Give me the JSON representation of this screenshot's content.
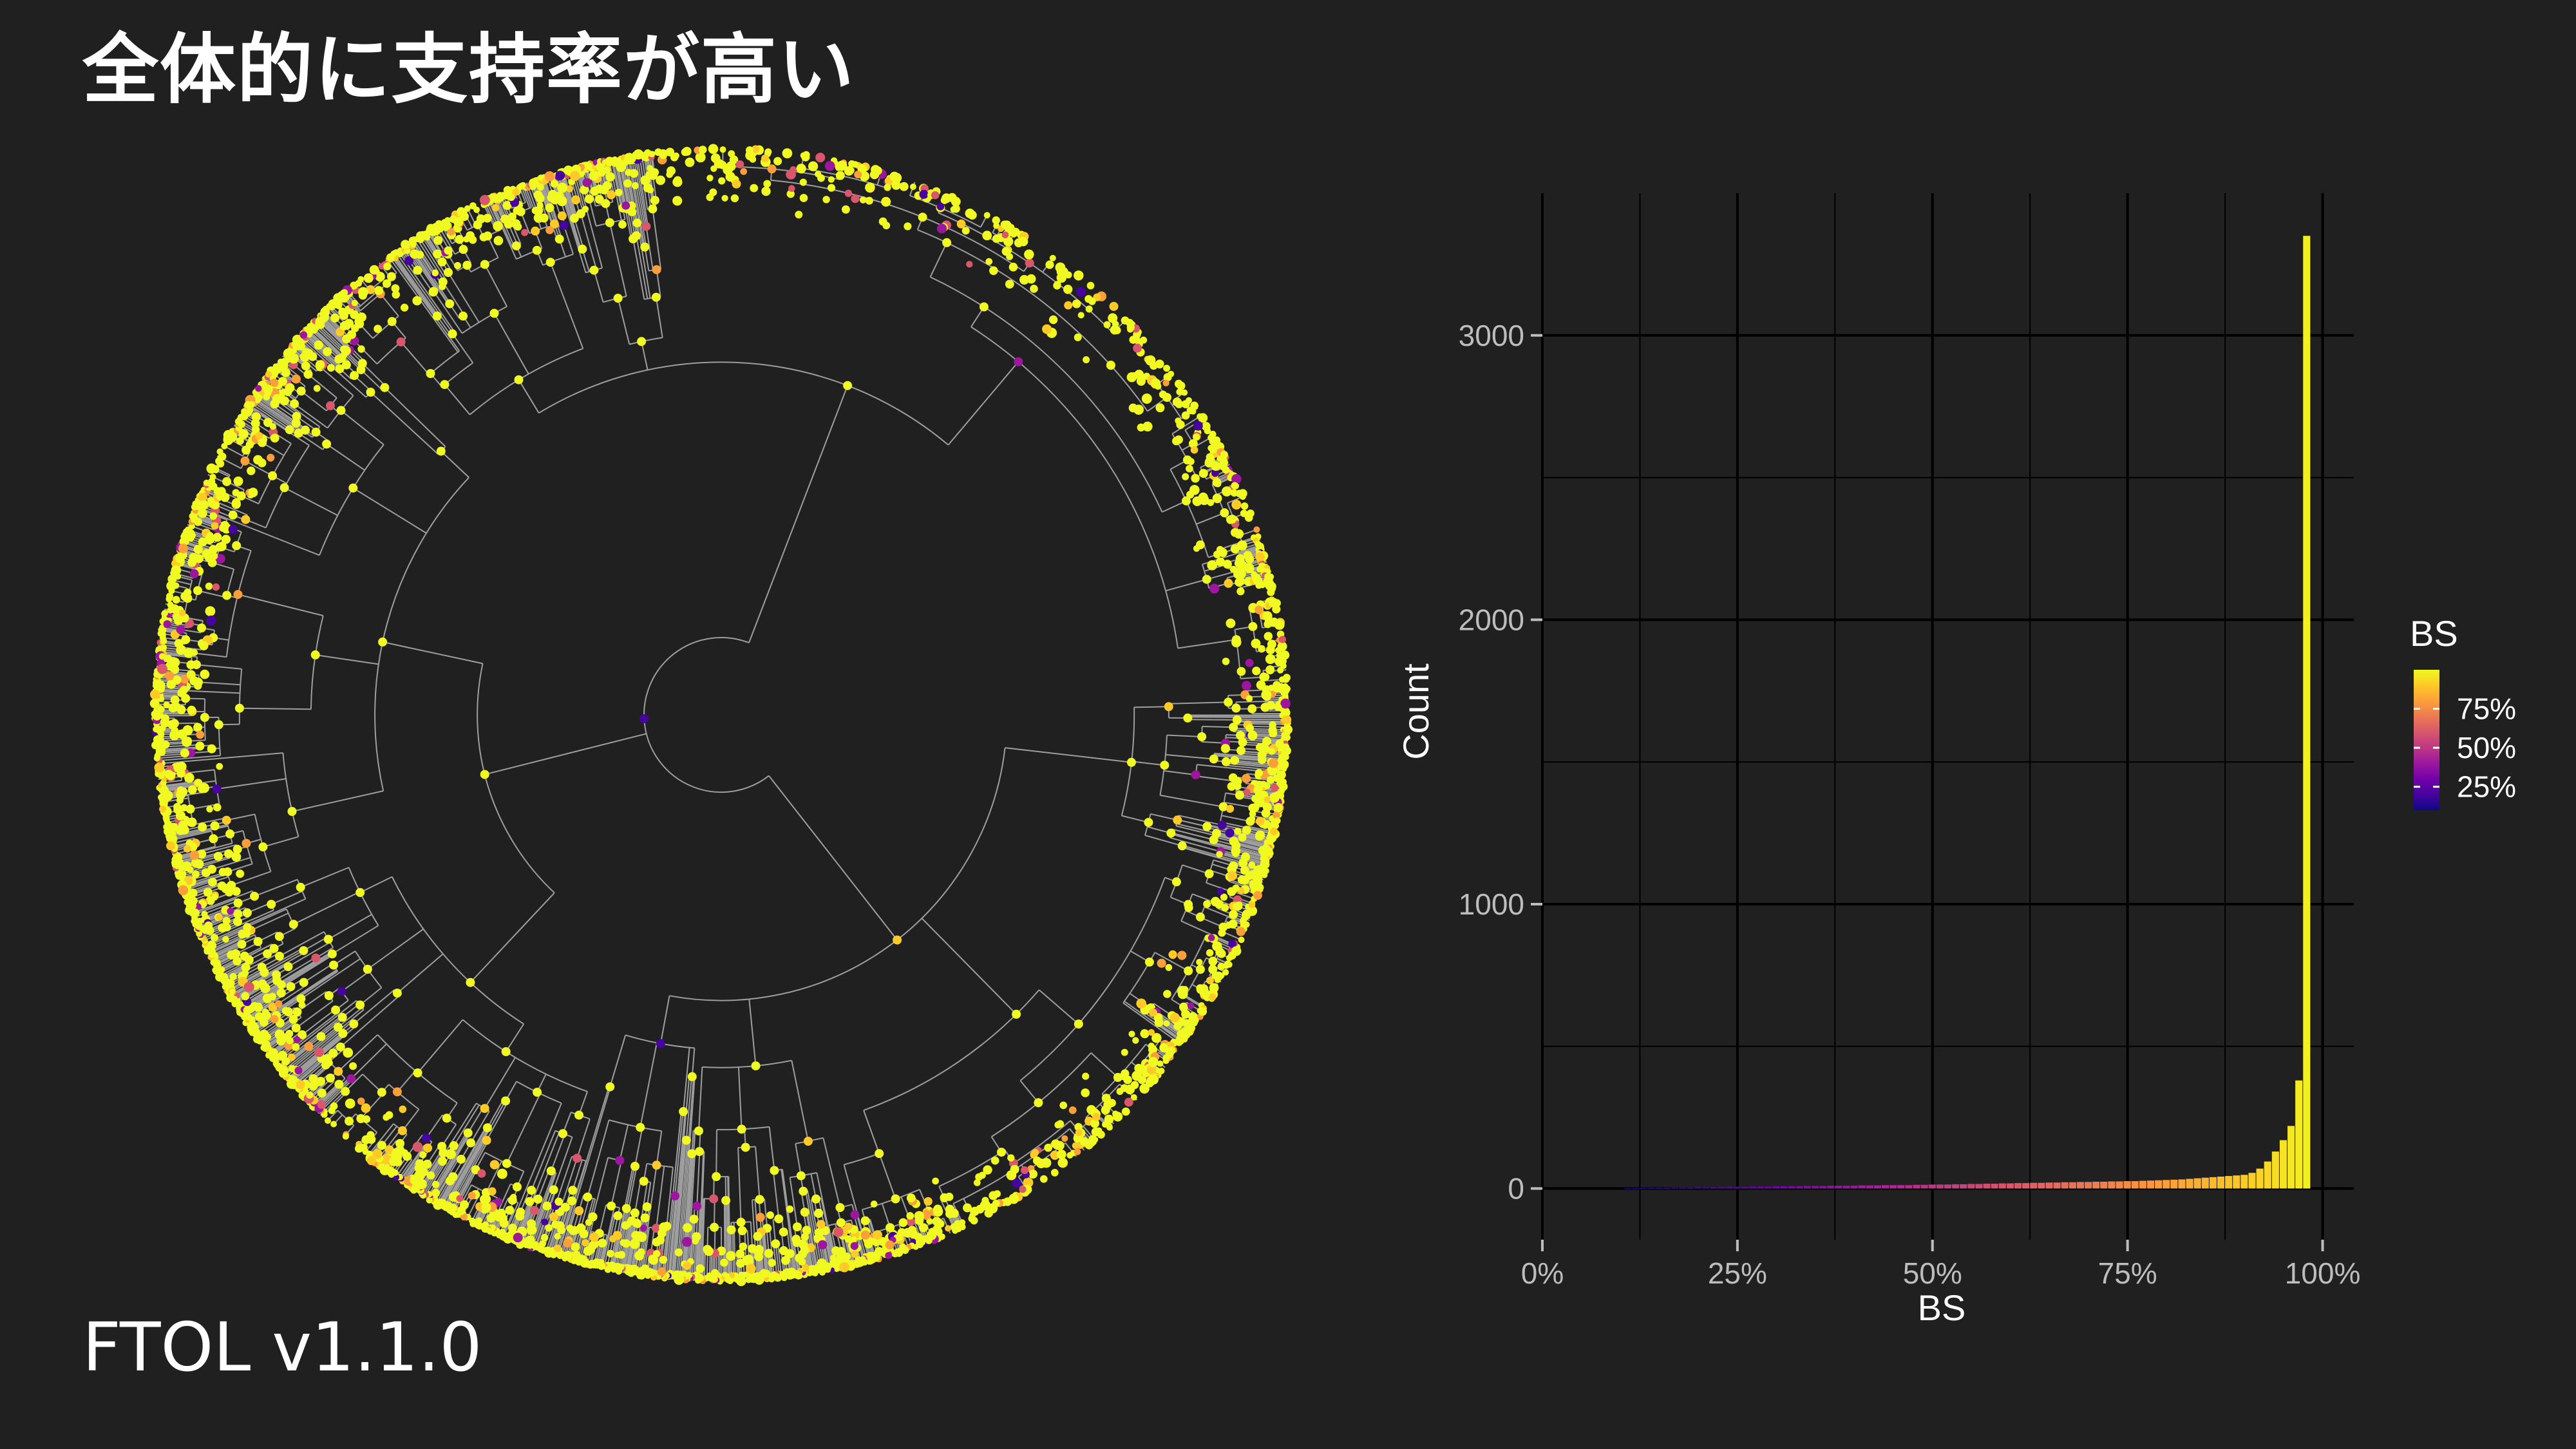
{
  "page": {
    "title": "全体的に支持率が高い",
    "footer": "FTOL v1.1.0",
    "background": "#202020"
  },
  "tree": {
    "type": "circular-phylogeny",
    "branch_color": "#9e9e9e",
    "node_colors": [
      "#f0f921",
      "#fdca26",
      "#fb9f3a",
      "#ed7953",
      "#d8576b",
      "#bd3786",
      "#9c179e",
      "#7201a8",
      "#46039f",
      "#0d0887"
    ]
  },
  "chart_data": {
    "type": "bar",
    "xlabel": "BS",
    "ylabel": "Count",
    "xlim": [
      0,
      104
    ],
    "ylim": [
      -180,
      3500
    ],
    "x_ticks": [
      {
        "value": 0,
        "label": "0%"
      },
      {
        "value": 25,
        "label": "25%"
      },
      {
        "value": 50,
        "label": "50%"
      },
      {
        "value": 75,
        "label": "75%"
      },
      {
        "value": 100,
        "label": "100%"
      }
    ],
    "y_ticks": [
      {
        "value": 0,
        "label": "0"
      },
      {
        "value": 1000,
        "label": "1000"
      },
      {
        "value": 2000,
        "label": "2000"
      },
      {
        "value": 3000,
        "label": "3000"
      }
    ],
    "grid": true,
    "bin_width": 1,
    "x": [
      1,
      2,
      3,
      4,
      5,
      6,
      7,
      8,
      9,
      10,
      11,
      12,
      13,
      14,
      15,
      16,
      17,
      18,
      19,
      20,
      21,
      22,
      23,
      24,
      25,
      26,
      27,
      28,
      29,
      30,
      31,
      32,
      33,
      34,
      35,
      36,
      37,
      38,
      39,
      40,
      41,
      42,
      43,
      44,
      45,
      46,
      47,
      48,
      49,
      50,
      51,
      52,
      53,
      54,
      55,
      56,
      57,
      58,
      59,
      60,
      61,
      62,
      63,
      64,
      65,
      66,
      67,
      68,
      69,
      70,
      71,
      72,
      73,
      74,
      75,
      76,
      77,
      78,
      79,
      80,
      81,
      82,
      83,
      84,
      85,
      86,
      87,
      88,
      89,
      90,
      91,
      92,
      93,
      94,
      95,
      96,
      97,
      98,
      99,
      100
    ],
    "values": [
      0,
      0,
      0,
      0,
      0,
      0,
      0,
      0,
      0,
      0,
      2,
      2,
      3,
      3,
      3,
      3,
      4,
      4,
      4,
      5,
      5,
      5,
      6,
      6,
      6,
      6,
      7,
      7,
      7,
      8,
      8,
      8,
      8,
      9,
      9,
      9,
      10,
      10,
      10,
      10,
      11,
      11,
      11,
      12,
      12,
      12,
      12,
      13,
      13,
      14,
      14,
      14,
      15,
      15,
      16,
      16,
      17,
      17,
      18,
      18,
      19,
      19,
      20,
      20,
      21,
      21,
      22,
      22,
      23,
      23,
      24,
      24,
      25,
      25,
      26,
      26,
      27,
      28,
      29,
      30,
      31,
      32,
      34,
      36,
      38,
      40,
      42,
      44,
      46,
      48,
      55,
      70,
      95,
      130,
      170,
      220,
      380,
      3350,
      0,
      0
    ],
    "legend": {
      "title": "BS",
      "labels": [
        {
          "value": 25,
          "label": "25%"
        },
        {
          "value": 50,
          "label": "50%"
        },
        {
          "value": 75,
          "label": "75%"
        }
      ],
      "range": [
        10,
        100
      ],
      "position": "right"
    },
    "colormap": [
      "#0d0887",
      "#46039f",
      "#7201a8",
      "#9c179e",
      "#bd3786",
      "#d8576b",
      "#ed7953",
      "#fb9f3a",
      "#fdca26",
      "#f0f921"
    ]
  }
}
